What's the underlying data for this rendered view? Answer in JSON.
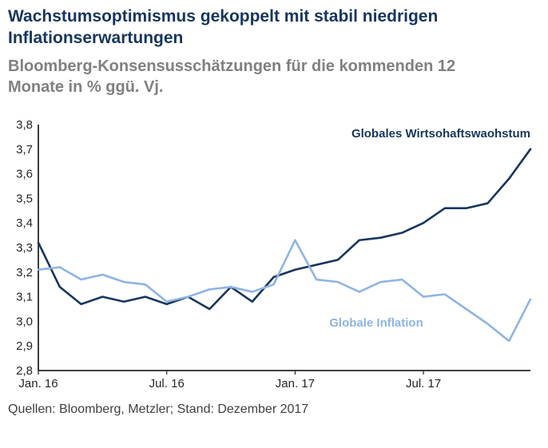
{
  "colors": {
    "growth": "#17365D",
    "inflation": "#8EB4E3",
    "title": "#17365D",
    "subtitle": "#808080",
    "axis": "#262626",
    "source_text": "#404040"
  },
  "chart_data": {
    "type": "line",
    "title": "Wachstumsoptimismus gekoppelt mit stabil niedrigen Inflationserwartungen",
    "subtitle": "Bloomberg-Konsensusschätzungen für die kommenden 12 Monate in % ggü. Vj.",
    "source": "Quellen: Bloomberg, Metzler; Stand: Dezember 2017",
    "grid": false,
    "legend_position": "inline-labels",
    "ylim": [
      2.8,
      3.8
    ],
    "yticks": [
      {
        "value": 2.8,
        "label": "2,8"
      },
      {
        "value": 2.9,
        "label": "2,9"
      },
      {
        "value": 3.0,
        "label": "3,0"
      },
      {
        "value": 3.1,
        "label": "3,1"
      },
      {
        "value": 3.2,
        "label": "3,2"
      },
      {
        "value": 3.3,
        "label": "3,3"
      },
      {
        "value": 3.4,
        "label": "3,4"
      },
      {
        "value": 3.5,
        "label": "3,5"
      },
      {
        "value": 3.6,
        "label": "3,6"
      },
      {
        "value": 3.7,
        "label": "3,7"
      },
      {
        "value": 3.8,
        "label": "3,8"
      }
    ],
    "xticks": [
      {
        "index": 0,
        "label": "Jan. 16"
      },
      {
        "index": 6,
        "label": "Jul. 16"
      },
      {
        "index": 12,
        "label": "Jan. 17"
      },
      {
        "index": 18,
        "label": "Jul. 17"
      }
    ],
    "series": [
      {
        "name": "Globales Wirtsohaftswaohstum",
        "color_key": "growth",
        "values": [
          3.32,
          3.14,
          3.07,
          3.1,
          3.08,
          3.1,
          3.07,
          3.1,
          3.05,
          3.14,
          3.08,
          3.18,
          3.21,
          3.23,
          3.25,
          3.33,
          3.34,
          3.36,
          3.4,
          3.46,
          3.46,
          3.48,
          3.58,
          3.7
        ]
      },
      {
        "name": "Globale Inflation",
        "color_key": "inflation",
        "values": [
          3.21,
          3.22,
          3.17,
          3.19,
          3.16,
          3.15,
          3.08,
          3.1,
          3.13,
          3.14,
          3.12,
          3.15,
          3.33,
          3.17,
          3.16,
          3.12,
          3.16,
          3.17,
          3.1,
          3.11,
          3.05,
          2.99,
          2.92,
          3.09
        ]
      }
    ]
  }
}
